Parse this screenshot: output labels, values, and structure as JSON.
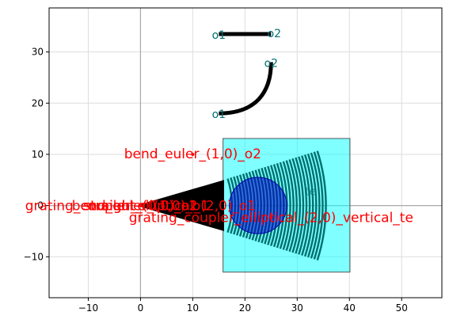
{
  "chart_data": {
    "type": "layout",
    "xlim": [
      -17.5,
      57.7
    ],
    "ylim": [
      -18.0,
      38.6
    ],
    "xticks": [
      -10,
      0,
      10,
      20,
      30,
      40,
      50
    ],
    "yticks": [
      -10,
      0,
      10,
      20,
      30
    ],
    "grid": true,
    "colors": {
      "wire": "#000000",
      "port_text": "#007070",
      "annotation": "#ff0000",
      "cladding": "#00ffff",
      "grating": "#007070",
      "circle": "#0000cc",
      "axis_line": "#aaaaaa"
    },
    "straight": {
      "x": [
        15,
        25
      ],
      "y": 33.5,
      "ports": [
        {
          "label": "o1",
          "x": 15,
          "y": 33.5
        },
        {
          "label": "o2",
          "x": 25,
          "y": 33.5
        }
      ]
    },
    "bend": {
      "start": [
        15,
        18
      ],
      "end": [
        25,
        28
      ],
      "ports": [
        {
          "label": "o1",
          "x": 15,
          "y": 18
        },
        {
          "label": "o2",
          "x": 25,
          "y": 28
        }
      ]
    },
    "grating_coupler": {
      "taper_tip": [
        0.0,
        0.0
      ],
      "taper_end_half_width": 5.0,
      "taper_end_x": 16.0,
      "box": {
        "x0": 15.8,
        "x1": 40.1,
        "y0": -13.0,
        "y1": 13.1
      },
      "circle": {
        "cx": 22.5,
        "cy": 0.0,
        "r": 5.5
      },
      "arc_center": [
        0.0,
        0.0
      ],
      "arc_radii": [
        17.5,
        35.5
      ],
      "arc_count": 30,
      "arc_half_angle_deg": 17.5
    },
    "annotations": [
      {
        "text": "bend_euler_(1,0)_o2",
        "x": 10.0,
        "y": 10.0
      },
      {
        "text": "grating_coupler_elliptical_(2,0)_o1",
        "x": 0.0,
        "y": 0.0
      },
      {
        "text": "bend_euler_(1,0)_o1",
        "x": 0.0,
        "y": 0.0
      },
      {
        "text": "straight_(0,0)_o1",
        "x": 0.0,
        "y": 0.0
      },
      {
        "text": "straight_(0,0)_o2",
        "x": 0.0,
        "y": 0.0
      },
      {
        "text": "grating_coupler_elliptical_(2,0)_vertical_te",
        "x": 25.0,
        "y": -2.3
      }
    ],
    "te_label": "te"
  }
}
